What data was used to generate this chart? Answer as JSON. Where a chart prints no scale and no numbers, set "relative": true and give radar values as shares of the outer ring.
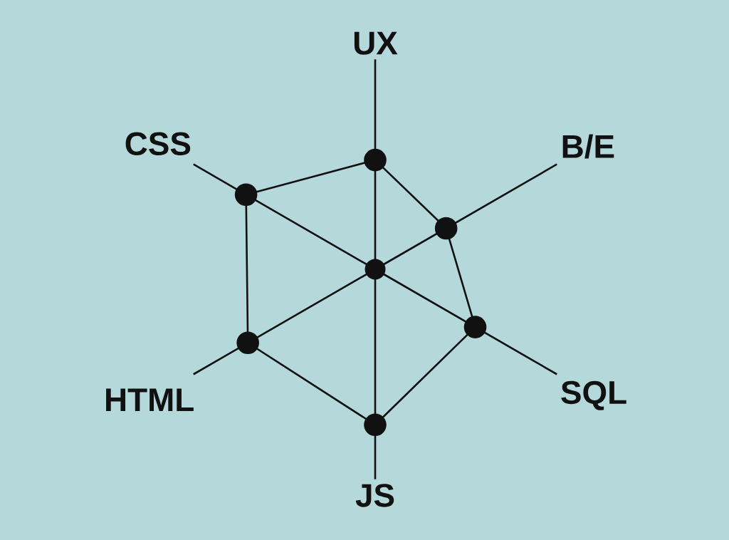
{
  "chart_data": {
    "type": "radar",
    "relative": true,
    "categories": [
      "UX",
      "B/E",
      "SQL",
      "JS",
      "HTML",
      "CSS"
    ],
    "series": [
      {
        "color": "#111111",
        "values": [
          0.52,
          0.39,
          0.55,
          0.74,
          0.7,
          0.71
        ]
      }
    ],
    "grid": true,
    "marker": "circle",
    "line_style": "solid"
  }
}
